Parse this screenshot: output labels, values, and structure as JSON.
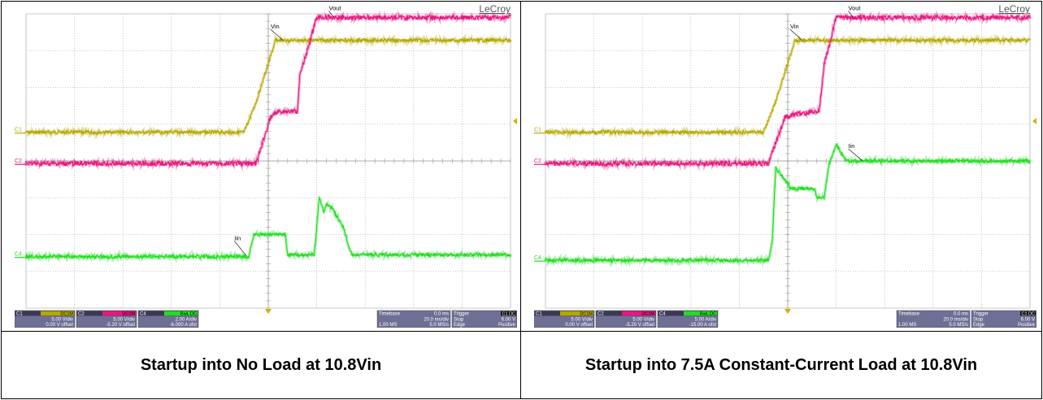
{
  "scopes": [
    {
      "brand": "LeCroy",
      "caption": "Startup into No Load at 10.8Vin",
      "channels": [
        {
          "id": "C1",
          "coupling": "DC1M",
          "scale": "5.00 V/div",
          "offset": "0.00 V offset",
          "color": "#b5a800"
        },
        {
          "id": "C2",
          "coupling": "DC1M",
          "scale": "5.00 V/div",
          "offset": "-5.20 V offset",
          "color": "#e8177f"
        },
        {
          "id": "C4",
          "coupling": "BwL DC",
          "scale": "2.00 A/div",
          "offset": "-6.000 A ofst",
          "color": "#22dd22"
        }
      ],
      "timebase": {
        "label": "Timebase",
        "delay": "0.0 ms",
        "rate": "20.0 ms/div",
        "samples": "1.00 MS",
        "srate": "5.0 MS/s"
      },
      "trigger": {
        "label": "Trigger",
        "coupling": "C1 DC",
        "mode": "Stop",
        "level": "6.00 V",
        "type": "Edge",
        "slope": "Positive"
      },
      "trace_labels": {
        "vout": "Vout",
        "vin": "Vin",
        "iin": "Iin"
      }
    },
    {
      "brand": "LeCroy",
      "caption": "Startup into 7.5A Constant-Current Load at 10.8Vin",
      "channels": [
        {
          "id": "C1",
          "coupling": "DC1M",
          "scale": "5.00 V/div",
          "offset": "0.00 V offset",
          "color": "#b5a800"
        },
        {
          "id": "C2",
          "coupling": "DC1M",
          "scale": "5.00 V/div",
          "offset": "-5.20 V offset",
          "color": "#e8177f"
        },
        {
          "id": "C4",
          "coupling": "BwL DC",
          "scale": "5.00 A/div",
          "offset": "-15.00 A ofst",
          "color": "#22dd22"
        }
      ],
      "timebase": {
        "label": "Timebase",
        "delay": "0.0 ms",
        "rate": "20.0 ms/div",
        "samples": "1.00 MS",
        "srate": "5.0 MS/s"
      },
      "trigger": {
        "label": "Trigger",
        "coupling": "C1 DC",
        "mode": "Stop",
        "level": "6.00 V",
        "type": "Edge",
        "slope": "Positive"
      },
      "trace_labels": {
        "vout": "Vout",
        "vin": "Vin",
        "iin": "Iin"
      }
    }
  ],
  "chart_data": [
    {
      "type": "line",
      "title": "Startup into No Load at 10.8Vin",
      "x_unit": "div",
      "xlim": [
        0,
        10
      ],
      "ylim": [
        0,
        8
      ],
      "grid": true,
      "series": [
        {
          "name": "Vin",
          "color": "#b5a800",
          "x": [
            0,
            4.5,
            4.75,
            5.15,
            10
          ],
          "y": [
            4.78,
            4.78,
            5.6,
            7.28,
            7.28
          ]
        },
        {
          "name": "Vout",
          "color": "#e8177f",
          "x": [
            0,
            4.75,
            5.05,
            5.2,
            5.6,
            5.65,
            6.0,
            10
          ],
          "y": [
            3.93,
            3.93,
            5.2,
            5.35,
            5.35,
            6.3,
            7.9,
            7.9
          ]
        },
        {
          "name": "Iin",
          "color": "#22dd22",
          "x": [
            0,
            4.6,
            4.7,
            5.35,
            5.4,
            5.95,
            6.05,
            6.15,
            6.2,
            6.3,
            6.55,
            6.7,
            6.75,
            10
          ],
          "y": [
            1.4,
            1.4,
            2.0,
            2.0,
            1.45,
            1.45,
            3.0,
            2.6,
            2.85,
            2.75,
            2.2,
            1.5,
            1.45,
            1.45
          ]
        }
      ]
    },
    {
      "type": "line",
      "title": "Startup into 7.5A Constant-Current Load at 10.8Vin",
      "x_unit": "div",
      "xlim": [
        0,
        10
      ],
      "ylim": [
        0,
        8
      ],
      "grid": true,
      "series": [
        {
          "name": "Vin",
          "color": "#b5a800",
          "x": [
            0,
            4.5,
            4.75,
            5.15,
            10
          ],
          "y": [
            4.78,
            4.78,
            5.6,
            7.28,
            7.28
          ]
        },
        {
          "name": "Vout",
          "color": "#e8177f",
          "x": [
            0,
            4.6,
            4.95,
            5.3,
            5.65,
            5.75,
            6.0,
            10
          ],
          "y": [
            3.93,
            3.93,
            5.2,
            5.3,
            5.35,
            6.6,
            7.9,
            7.9
          ]
        },
        {
          "name": "Iin",
          "color": "#22dd22",
          "x": [
            0,
            4.6,
            4.68,
            4.75,
            5.0,
            5.05,
            5.55,
            5.6,
            5.75,
            5.85,
            6.0,
            6.2,
            10
          ],
          "y": [
            1.3,
            1.3,
            1.8,
            3.8,
            3.4,
            3.25,
            3.25,
            3.0,
            3.0,
            3.9,
            4.45,
            4.0,
            4.0
          ]
        }
      ]
    }
  ]
}
